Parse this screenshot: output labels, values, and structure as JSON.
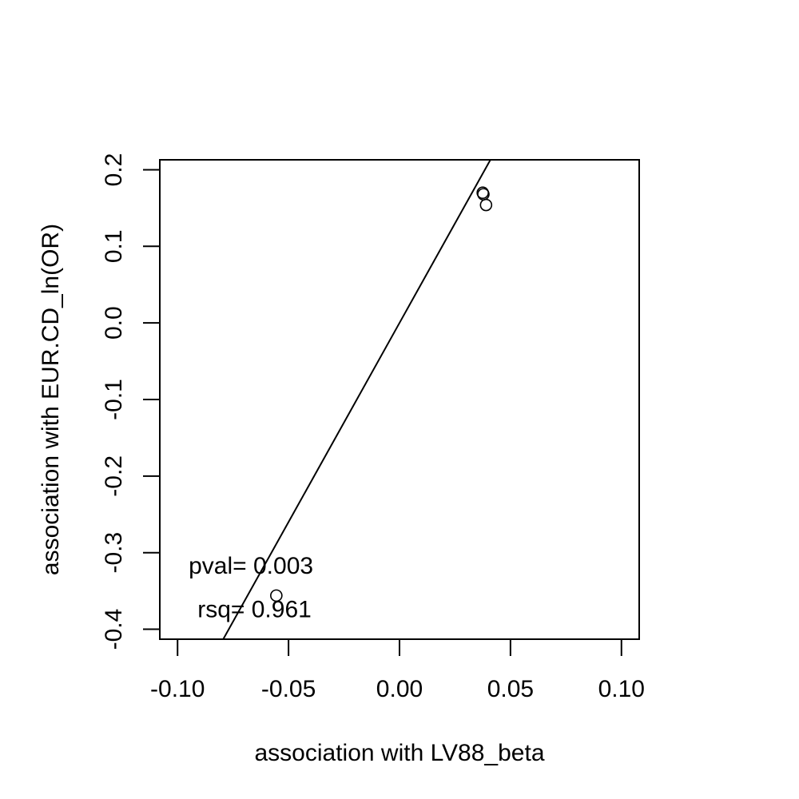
{
  "chart_data": {
    "type": "scatter",
    "xlabel": "association with LV88_beta",
    "ylabel": "association with EUR.CD_ln(OR)",
    "xlim": [
      -0.108,
      0.108
    ],
    "ylim": [
      -0.413,
      0.213
    ],
    "xticks": [
      -0.1,
      -0.05,
      0.0,
      0.05,
      0.1
    ],
    "xtick_labels": [
      "-0.10",
      "-0.05",
      "0.00",
      "0.05",
      "0.10"
    ],
    "yticks": [
      -0.4,
      -0.3,
      -0.2,
      -0.1,
      0.0,
      0.1,
      0.2
    ],
    "ytick_labels": [
      "-0.4",
      "-0.3",
      "-0.2",
      "-0.1",
      "0.0",
      "0.1",
      "0.2"
    ],
    "points": [
      {
        "x": 0.0375,
        "y": 0.17
      },
      {
        "x": 0.0378,
        "y": 0.168
      },
      {
        "x": 0.039,
        "y": 0.154
      },
      {
        "x": -0.0555,
        "y": -0.356
      }
    ],
    "fit_line": {
      "intercept": 0.0,
      "slope": 5.2
    },
    "annotations": [
      {
        "text": "pval= 0.003",
        "x": -0.095,
        "y": -0.316
      },
      {
        "text": "rsq= 0.961",
        "x": -0.091,
        "y": -0.373
      }
    ],
    "grid": false,
    "legend": "none"
  }
}
